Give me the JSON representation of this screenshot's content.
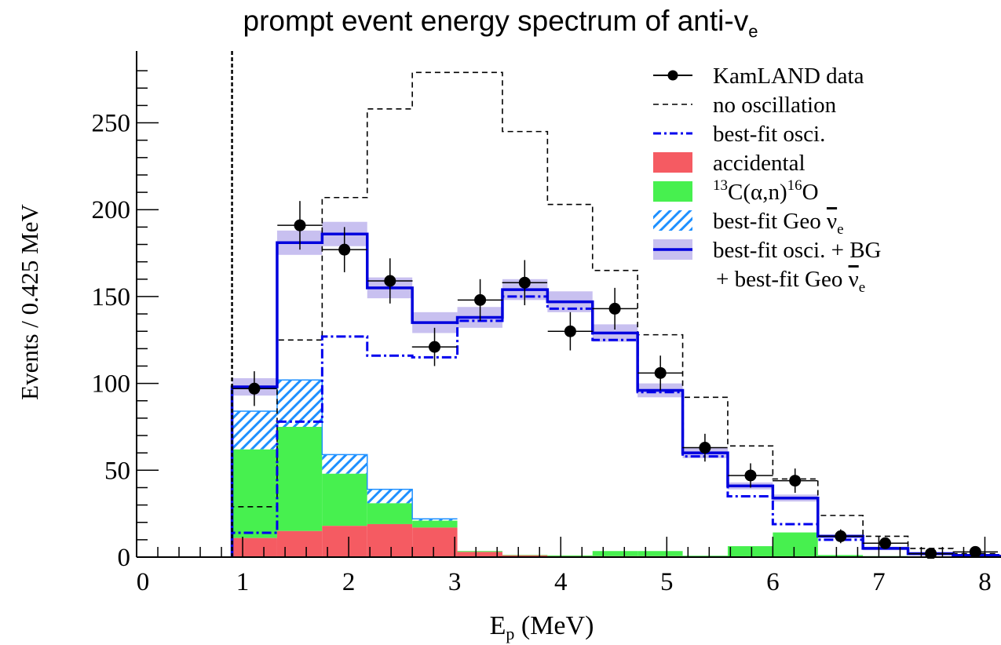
{
  "chart_data": {
    "type": "step",
    "title": "prompt event energy spectrum of anti-v",
    "title_subscript": "e",
    "xlabel": "E",
    "xlabel_subscript": "p",
    "xlabel_unit": " (MeV)",
    "ylabel": "Events / 0.425 MeV",
    "xlim": [
      0,
      8.5
    ],
    "ylim": [
      0,
      290
    ],
    "xticks": [
      "0",
      "1",
      "2",
      "3",
      "4",
      "5",
      "6",
      "7",
      "8"
    ],
    "yticks": [
      "0",
      "50",
      "100",
      "150",
      "200",
      "250"
    ],
    "analysis_threshold": 0.9,
    "bin_edges": [
      0.9,
      1.325,
      1.75,
      2.175,
      2.6,
      3.025,
      3.45,
      3.875,
      4.3,
      4.725,
      5.15,
      5.575,
      6.0,
      6.425,
      6.85,
      7.275,
      7.7,
      8.125,
      8.5
    ],
    "series": [
      {
        "key": "data",
        "name": "KamLAND data",
        "style": "points",
        "color": "#000000",
        "x": [
          1.11,
          1.54,
          1.96,
          2.39,
          2.81,
          3.24,
          3.66,
          4.09,
          4.51,
          4.94,
          5.36,
          5.79,
          6.21,
          6.64,
          7.06,
          7.49,
          7.91
        ],
        "y": [
          97,
          191,
          177,
          159,
          121,
          148,
          158,
          130,
          143,
          106,
          63,
          47,
          44,
          12,
          8,
          2,
          3
        ],
        "yerr": [
          10,
          14,
          13,
          13,
          11,
          12,
          13,
          11,
          12,
          10,
          8,
          7,
          7,
          4,
          3,
          2,
          2
        ]
      },
      {
        "key": "no_osc",
        "name": "no oscillation",
        "style": "step-dashed",
        "color": "#000000",
        "values": [
          29,
          125,
          207,
          258,
          279,
          279,
          245,
          203,
          165,
          128,
          92,
          64,
          45,
          24,
          12,
          5,
          2,
          1
        ]
      },
      {
        "key": "bestfit_osci",
        "name": "best-fit osci.",
        "style": "step-dashdot",
        "color": "#0000ee",
        "values": [
          14,
          78,
          127,
          116,
          115,
          136,
          150,
          143,
          125,
          95,
          58,
          35,
          19,
          10,
          5,
          2,
          1,
          0.5
        ]
      },
      {
        "key": "accidental",
        "name": "accidental",
        "style": "fill",
        "color": "#f55b62",
        "values": [
          11,
          15,
          18,
          19,
          17,
          3,
          1,
          0.5,
          0.5,
          0.5,
          0.3,
          0.3,
          0.2,
          0.2,
          0.1,
          0.1,
          0.1,
          0
        ]
      },
      {
        "key": "c13",
        "name": "13C(α,n)16O",
        "style": "fill",
        "color": "#47f04f",
        "values": [
          51,
          60,
          30,
          12,
          4,
          0.5,
          0.3,
          0.5,
          3,
          3,
          0.5,
          6,
          14,
          1,
          0.5,
          0.2,
          0.1,
          0
        ]
      },
      {
        "key": "geo",
        "name": "best-fit Geo ν̅e",
        "style": "hatch",
        "color": "#1e90ff",
        "values": [
          22,
          27,
          11,
          8,
          1,
          0,
          0,
          0,
          0,
          0,
          0,
          0,
          0,
          0,
          0,
          0,
          0,
          0
        ]
      },
      {
        "key": "total",
        "name": "best-fit osci. + BG",
        "name_line2": "+ best-fit Geo ν̅e",
        "style": "step-band",
        "color": "#0000dd",
        "band_color": "#c8c0f0",
        "values": [
          98,
          181,
          186,
          155,
          135,
          138,
          154,
          147,
          129,
          96,
          60,
          41,
          34,
          12,
          5,
          2,
          1,
          0.5
        ],
        "band": [
          5,
          7,
          7,
          6,
          6,
          6,
          6,
          6,
          5,
          4,
          3,
          2,
          2,
          1,
          1,
          1,
          0.5,
          0.5
        ]
      }
    ],
    "legend": {
      "position": "top-right",
      "entries": [
        {
          "key": "data",
          "label": "KamLAND data"
        },
        {
          "key": "no_osc",
          "label": "no oscillation"
        },
        {
          "key": "bestfit_osci",
          "label": "best-fit osci."
        },
        {
          "key": "accidental",
          "label": "accidental"
        },
        {
          "key": "c13",
          "label_parts": [
            "13",
            "C(α,n)",
            "16",
            "O"
          ]
        },
        {
          "key": "geo",
          "label": "best-fit Geo ",
          "nu": "ν",
          "nu_sub": "e"
        },
        {
          "key": "total",
          "label": "best-fit osci. + BG"
        },
        {
          "key": "total2",
          "label": "+ best-fit Geo ",
          "nu": "ν",
          "nu_sub": "e"
        }
      ]
    }
  }
}
